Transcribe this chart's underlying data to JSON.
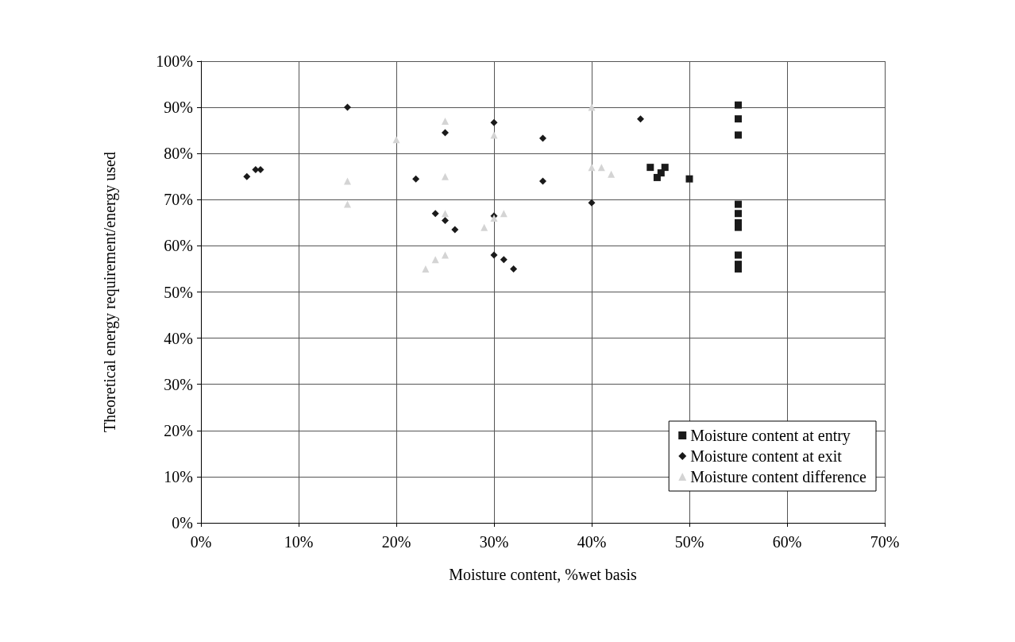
{
  "chart_data": {
    "type": "scatter",
    "xlabel": "Moisture content, %wet basis",
    "ylabel": "Theoretical energy requirement/energy used",
    "xlim": [
      0,
      70
    ],
    "xticks": [
      {
        "value": 0,
        "label": "0%"
      },
      {
        "value": 10,
        "label": "10%"
      },
      {
        "value": 20,
        "label": "20%"
      },
      {
        "value": 30,
        "label": "30%"
      },
      {
        "value": 40,
        "label": "40%"
      },
      {
        "value": 50,
        "label": "50%"
      },
      {
        "value": 60,
        "label": "60%"
      },
      {
        "value": 70,
        "label": "70%"
      }
    ],
    "ylim": [
      0,
      100
    ],
    "yticks": [
      {
        "value": 0,
        "label": "0%"
      },
      {
        "value": 10,
        "label": "10%"
      },
      {
        "value": 20,
        "label": "20%"
      },
      {
        "value": 30,
        "label": "30%"
      },
      {
        "value": 40,
        "label": "40%"
      },
      {
        "value": 50,
        "label": "50%"
      },
      {
        "value": 60,
        "label": "60%"
      },
      {
        "value": 70,
        "label": "70%"
      },
      {
        "value": 80,
        "label": "80%"
      },
      {
        "value": 90,
        "label": "90%"
      },
      {
        "value": 100,
        "label": "100%"
      }
    ],
    "grid": true,
    "legend": "bottom right",
    "series": [
      {
        "name": "Moisture content at entry",
        "color": "#1a1a1a",
        "marker": "square",
        "x": [
          46,
          46.7,
          47.1,
          47.5,
          50,
          55,
          55,
          55,
          55,
          55,
          55,
          55,
          55,
          55,
          55
        ],
        "values": [
          77,
          74.8,
          75.8,
          77,
          74.5,
          90.5,
          87.5,
          84,
          69,
          67,
          65,
          64,
          58,
          56,
          55
        ]
      },
      {
        "name": "Moisture content at exit",
        "color": "#1a1a1a",
        "marker": "diamond",
        "x": [
          4.7,
          5.6,
          6.1,
          15,
          22,
          24,
          25,
          25,
          26,
          30,
          30,
          30,
          31,
          32,
          35,
          35,
          40,
          45
        ],
        "values": [
          75,
          76.5,
          76.5,
          90,
          74.5,
          67,
          84.5,
          65.5,
          63.5,
          86.7,
          66.5,
          58,
          57,
          55,
          83.3,
          74,
          69.3,
          87.5
        ]
      },
      {
        "name": "Moisture content difference",
        "color": "#d4d4d4",
        "marker": "triangle",
        "x": [
          15,
          15,
          20,
          25,
          25,
          25,
          23,
          24,
          25,
          29,
          30,
          30,
          31,
          40,
          40,
          41,
          42
        ],
        "values": [
          74,
          69,
          83,
          87,
          75,
          67,
          55,
          57,
          58,
          64,
          84,
          66,
          67,
          90,
          77,
          77,
          75.5
        ]
      }
    ]
  }
}
